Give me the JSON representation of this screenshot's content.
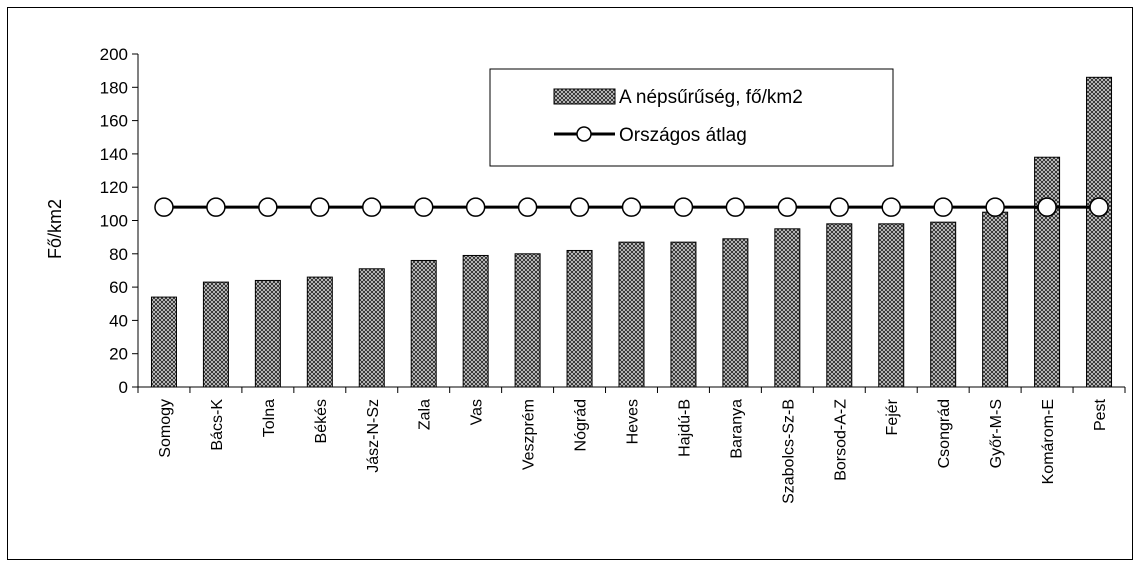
{
  "chart_data": {
    "type": "bar",
    "title": "",
    "xlabel": "",
    "ylabel": "Fő/km2",
    "ylim": [
      0,
      200
    ],
    "yticks": [
      0,
      20,
      40,
      60,
      80,
      100,
      120,
      140,
      160,
      180,
      200
    ],
    "categories": [
      "Somogy",
      "Bács-K",
      "Tolna",
      "Békés",
      "Jász-N-Sz",
      "Zala",
      "Vas",
      "Veszprém",
      "Nógrád",
      "Heves",
      "Hajdú-B",
      "Baranya",
      "Szabolcs-Sz-B",
      "Borsod-A-Z",
      "Fejér",
      "Csongrád",
      "Győr-M-S",
      "Komárom-E",
      "Pest"
    ],
    "series": [
      {
        "name": "A népsűrűség, fő/km2",
        "type": "bar",
        "values": [
          54,
          63,
          64,
          66,
          71,
          76,
          79,
          80,
          82,
          87,
          87,
          89,
          95,
          98,
          98,
          99,
          105,
          138,
          186
        ]
      },
      {
        "name": "Országos átlag",
        "type": "line",
        "values": [
          108,
          108,
          108,
          108,
          108,
          108,
          108,
          108,
          108,
          108,
          108,
          108,
          108,
          108,
          108,
          108,
          108,
          108,
          108
        ]
      }
    ],
    "legend": "top-right",
    "grid": false
  }
}
